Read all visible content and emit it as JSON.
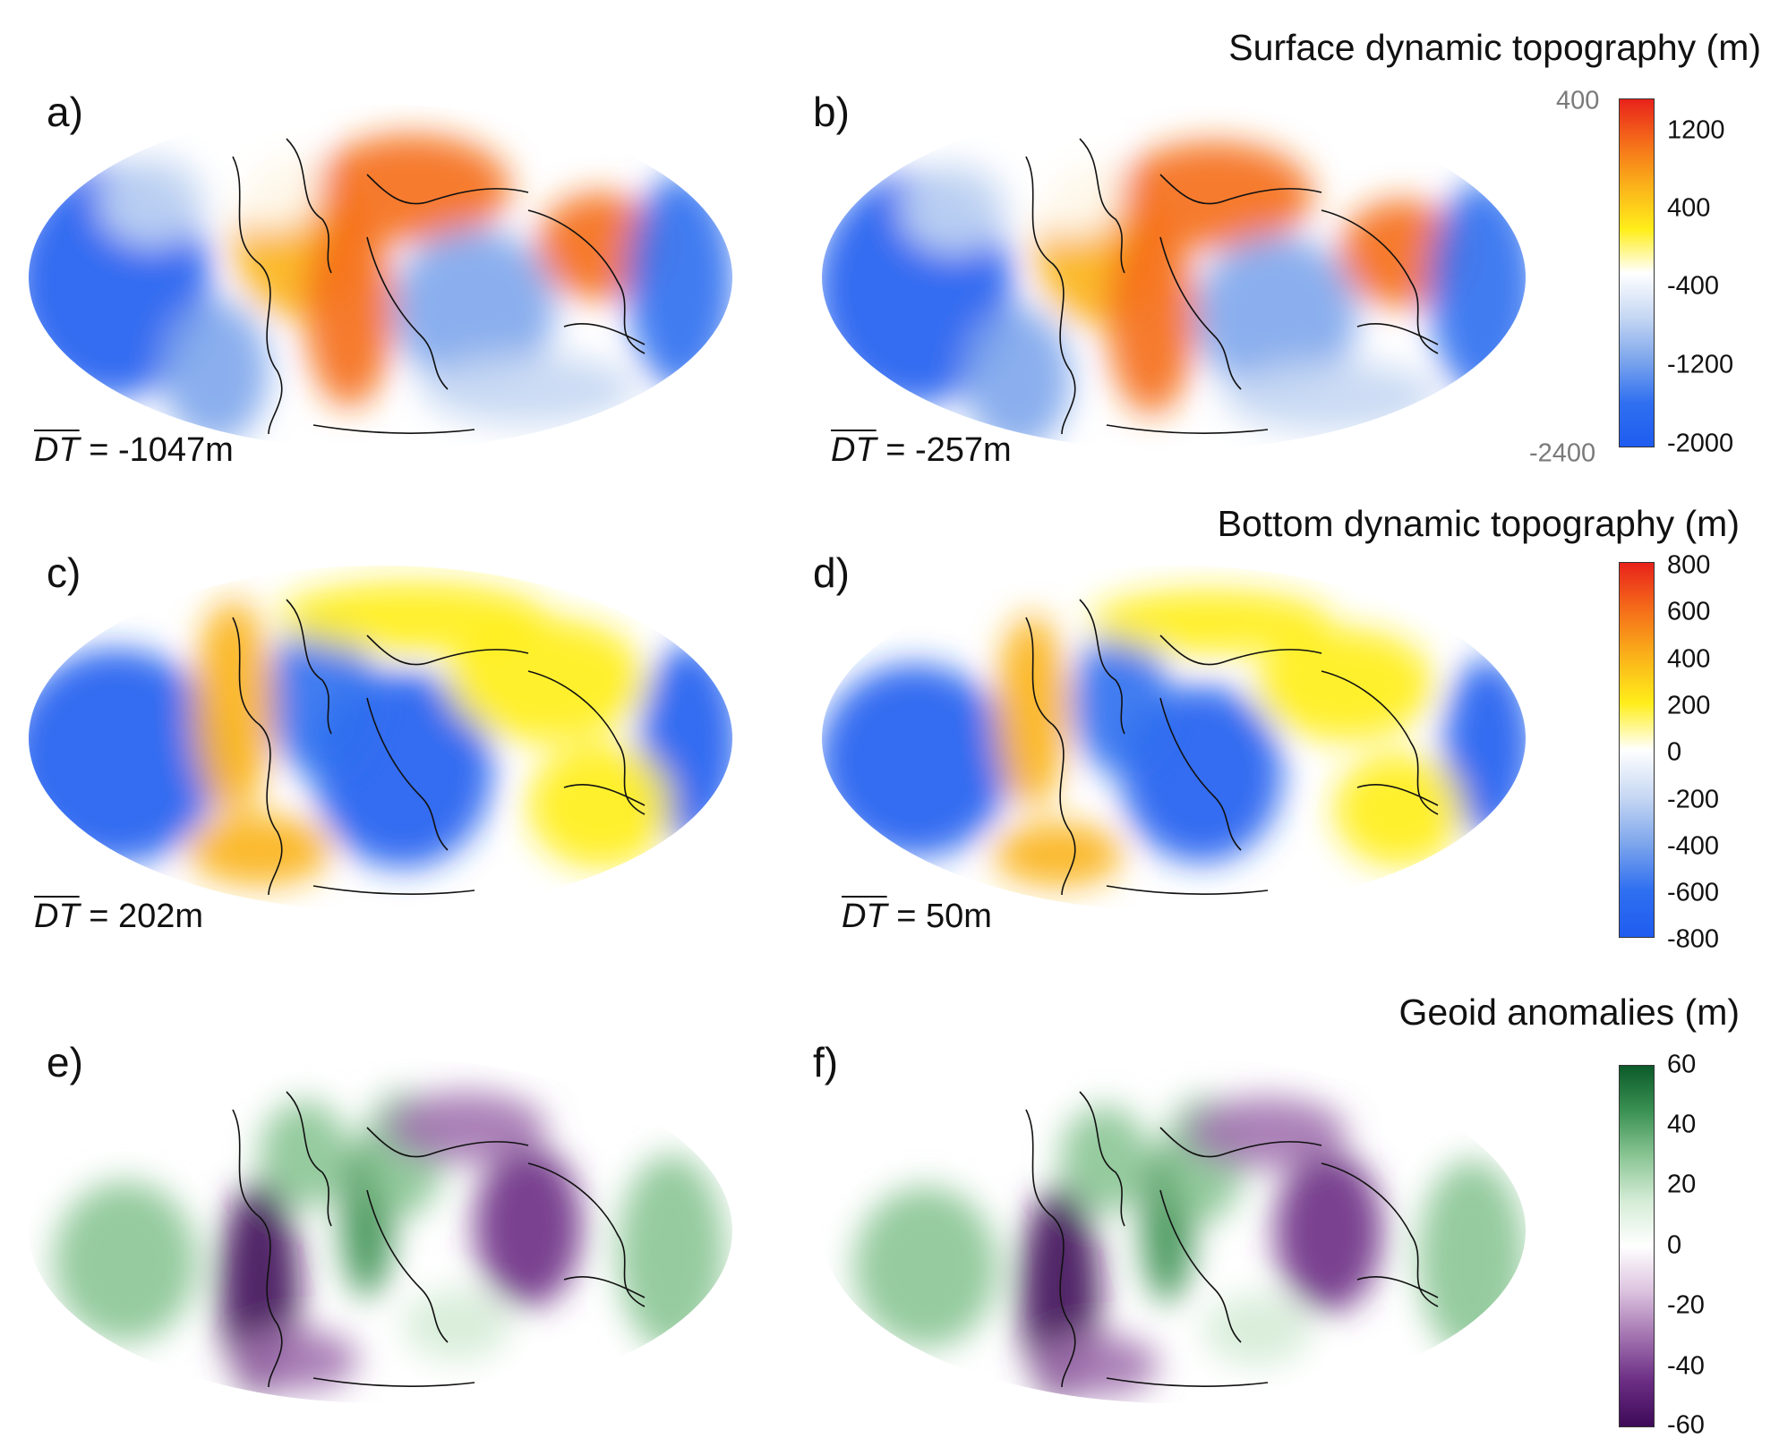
{
  "titles": {
    "surface": "Surface dynamic topography (m)",
    "bottom": "Bottom dynamic topography (m)",
    "geoid": "Geoid anomalies (m)"
  },
  "panels": [
    {
      "letter": "a)",
      "dt_symbol": "DT",
      "dt_text": " = -1047m",
      "palette": "topo"
    },
    {
      "letter": "b)",
      "dt_symbol": "DT",
      "dt_text": " = -257m",
      "palette": "topo"
    },
    {
      "letter": "c)",
      "dt_symbol": "DT",
      "dt_text": " = 202m",
      "palette": "topo"
    },
    {
      "letter": "d)",
      "dt_symbol": "DT",
      "dt_text": " = 50m",
      "palette": "topo"
    },
    {
      "letter": "e)",
      "dt_symbol": "",
      "dt_text": "",
      "palette": "geoid"
    },
    {
      "letter": "f)",
      "dt_symbol": "",
      "dt_text": "",
      "palette": "geoid"
    }
  ],
  "colorbars": {
    "surface": {
      "ticks": [
        "1200",
        "400",
        "-400",
        "-1200",
        "-2000"
      ],
      "alt_top": "400",
      "alt_bottom": "-2400",
      "colors": [
        "#e8221b",
        "#f56d1a",
        "#fbb21a",
        "#ffee1a",
        "#ffffff",
        "#c7d8f3",
        "#7ea6ec",
        "#2f6ff0",
        "#1f5cf0"
      ]
    },
    "bottom": {
      "ticks": [
        "800",
        "600",
        "400",
        "200",
        "0",
        "-200",
        "-400",
        "-600",
        "-800"
      ],
      "colors": [
        "#e8221b",
        "#f56d1a",
        "#fbb21a",
        "#ffee1a",
        "#ffffff",
        "#c7d8f3",
        "#7ea6ec",
        "#2f6ff0",
        "#1f5cf0"
      ]
    },
    "geoid": {
      "ticks": [
        "60",
        "40",
        "20",
        "0",
        "-20",
        "-40",
        "-60"
      ],
      "colors": [
        "#0c5a2a",
        "#3a9152",
        "#8ac594",
        "#d5ecd6",
        "#ffffff",
        "#dcc3df",
        "#a273b0",
        "#6b2d84",
        "#3d0a57"
      ]
    }
  }
}
